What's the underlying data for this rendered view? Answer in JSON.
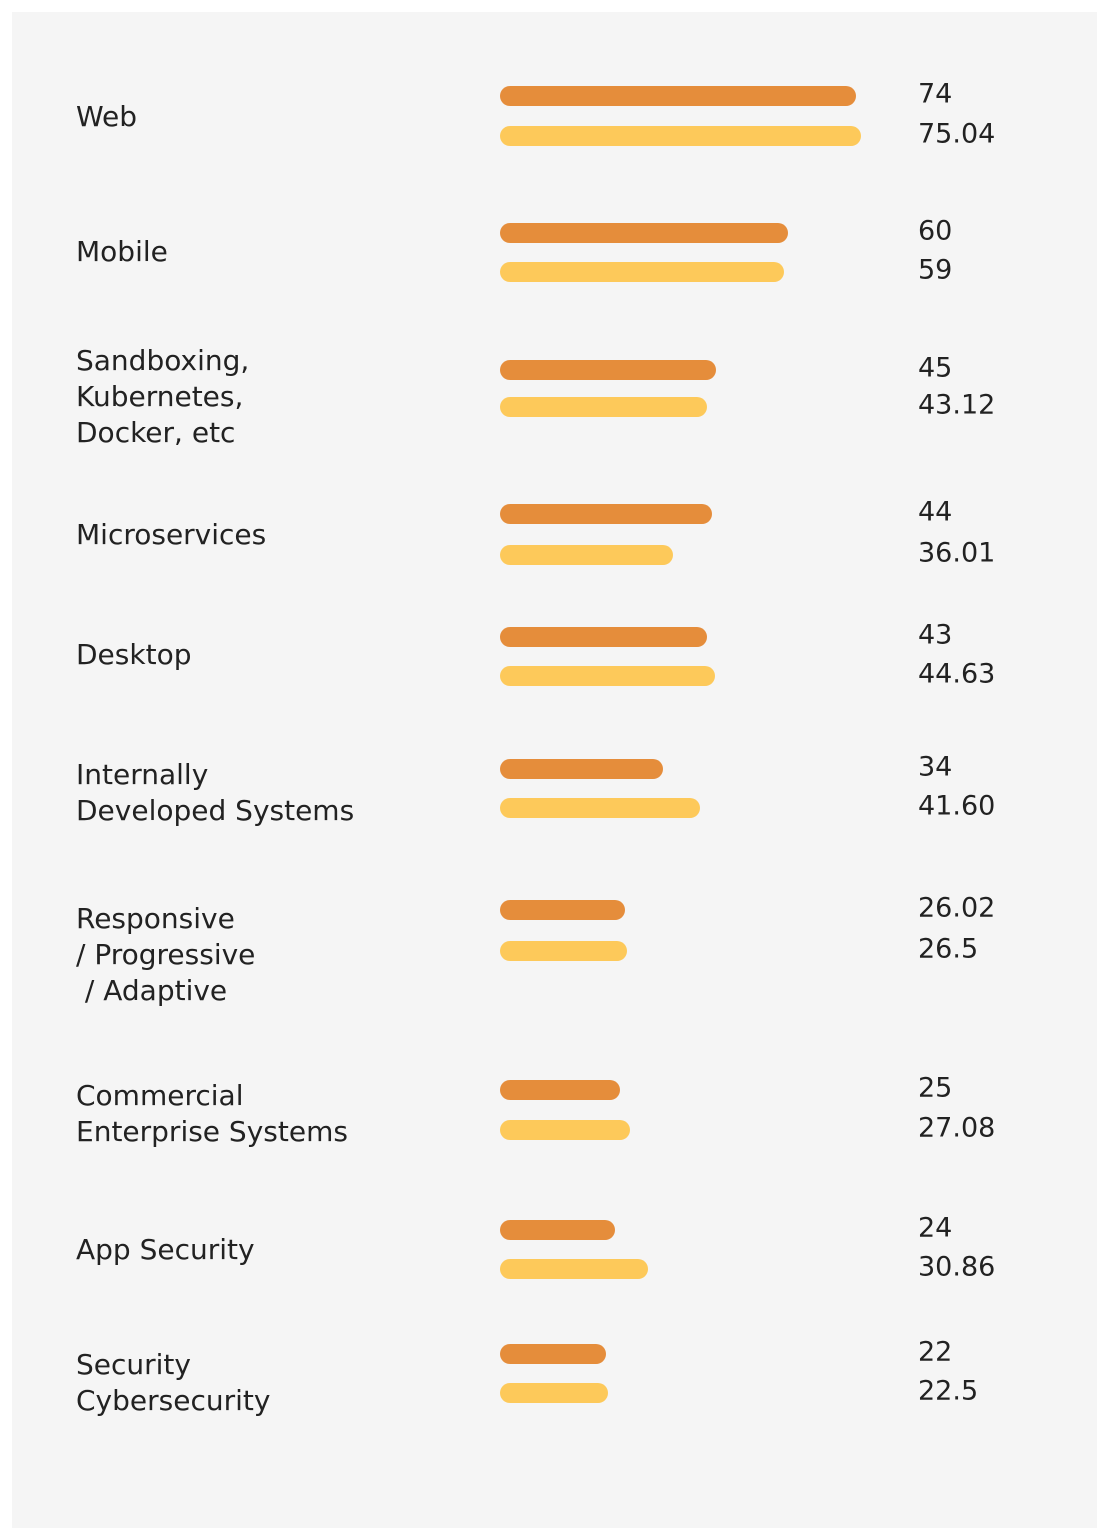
{
  "chart_data": {
    "type": "bar",
    "orientation": "horizontal",
    "categories": [
      "Web",
      "Mobile",
      "Sandboxing,\nKubernetes,\nDocker, etc",
      "Microservices",
      "Desktop",
      "Internally\nDeveloped Systems",
      "Responsive\n/ Progressive\n / Adaptive",
      "Commercial\nEnterprise Systems",
      "App Security",
      "Security\nCybersecurity"
    ],
    "series": [
      {
        "color": "#e58d3b",
        "values": [
          74,
          60,
          45,
          44,
          43,
          34,
          26.02,
          25,
          24,
          22
        ],
        "value_labels": [
          "74",
          "60",
          "45",
          "44",
          "43",
          "34",
          "26.02",
          "25",
          "24",
          "22"
        ]
      },
      {
        "color": "#fdc95a",
        "values": [
          75.04,
          59,
          43.12,
          36.01,
          44.63,
          41.6,
          26.5,
          27.08,
          30.86,
          22.5
        ],
        "value_labels": [
          "75.04",
          "59",
          "43.12",
          "36.01",
          "44.63",
          "41.60",
          "26.5",
          "27.08",
          "30.86",
          "22.5"
        ]
      }
    ],
    "xlim": [
      0,
      78
    ]
  }
}
